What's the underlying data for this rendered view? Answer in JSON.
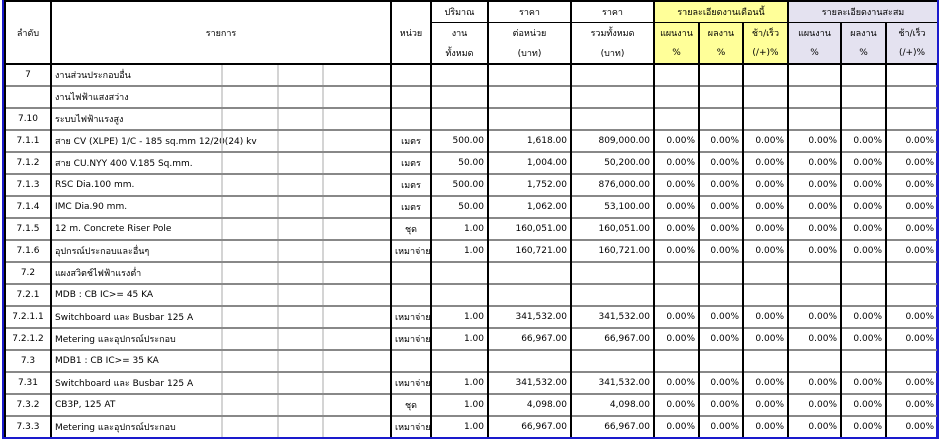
{
  "header": {
    "no": "ลำดับ",
    "item": "รายการ",
    "unit": "หน่วย",
    "qty": [
      "ปริมาณ",
      "งาน",
      "ทั้งหมด"
    ],
    "unit_price": [
      "ราคา",
      "ต่อหน่วย",
      "(บาท)"
    ],
    "total_price": [
      "ราคา",
      "รวมทั้งหมด",
      "(บาท)"
    ],
    "this_month": "รายละเอียดงานเดือนนี้",
    "cumulative": "รายละเอียดงานสะสม",
    "plan": [
      "แผนงาน",
      "%"
    ],
    "result": [
      "ผลงาน",
      "%"
    ],
    "diff": [
      "ช้า/เร็ว",
      "(/+)%"
    ]
  },
  "colors": {
    "this_month_bg": "#ffff99",
    "cumulative_bg": "#e4e2f0",
    "border_accent": "#1a1acc"
  },
  "rows": [
    {
      "no": "7",
      "item": "งานส่วนประกอบอื่น",
      "unit": "",
      "qty": "",
      "price": "",
      "total": "",
      "p": [
        "",
        "",
        "",
        "",
        "",
        ""
      ]
    },
    {
      "no": "",
      "item": "งานไฟฟ้าแสงสว่าง",
      "unit": "",
      "qty": "",
      "price": "",
      "total": "",
      "p": [
        "",
        "",
        "",
        "",
        "",
        ""
      ]
    },
    {
      "no": "7.10",
      "item": "ระบบไฟฟ้าแรงสูง",
      "unit": "",
      "qty": "",
      "price": "",
      "total": "",
      "p": [
        "",
        "",
        "",
        "",
        "",
        ""
      ]
    },
    {
      "no": "7.1.1",
      "item": "สาย CV (XLPE) 1/C - 185 sq.mm 12/20(24) kv",
      "unit": "เมตร",
      "qty": "500.00",
      "price": "1,618.00",
      "total": "809,000.00",
      "p": [
        "0.00%",
        "0.00%",
        "0.00%",
        "0.00%",
        "0.00%",
        "0.00%"
      ]
    },
    {
      "no": "7.1.2",
      "item": "สาย CU.NYY 400 V.185 Sq.mm.",
      "unit": "เมตร",
      "qty": "50.00",
      "price": "1,004.00",
      "total": "50,200.00",
      "p": [
        "0.00%",
        "0.00%",
        "0.00%",
        "0.00%",
        "0.00%",
        "0.00%"
      ]
    },
    {
      "no": "7.1.3",
      "item": " RSC Dia.100 mm.",
      "unit": "เมตร",
      "qty": "500.00",
      "price": "1,752.00",
      "total": "876,000.00",
      "p": [
        "0.00%",
        "0.00%",
        "0.00%",
        "0.00%",
        "0.00%",
        "0.00%"
      ]
    },
    {
      "no": "7.1.4",
      "item": "IMC Dia.90 mm.",
      "unit": "เมตร",
      "qty": "50.00",
      "price": "1,062.00",
      "total": "53,100.00",
      "p": [
        "0.00%",
        "0.00%",
        "0.00%",
        "0.00%",
        "0.00%",
        "0.00%"
      ]
    },
    {
      "no": "7.1.5",
      "item": " 12 m. Concrete Riser Pole",
      "unit": "ชุด",
      "qty": "1.00",
      "price": "160,051.00",
      "total": "160,051.00",
      "p": [
        "0.00%",
        "0.00%",
        "0.00%",
        "0.00%",
        "0.00%",
        "0.00%"
      ]
    },
    {
      "no": "7.1.6",
      "item": "อุปกรณ์ประกอบและอื่นๆ",
      "unit": "เหมาจ่าย",
      "qty": "1.00",
      "price": "160,721.00",
      "total": "160,721.00",
      "p": [
        "0.00%",
        "0.00%",
        "0.00%",
        "0.00%",
        "0.00%",
        "0.00%"
      ]
    },
    {
      "no": "7.2",
      "item": "แผงสวิตช์ไฟฟ้าแรงต่ำ",
      "unit": "",
      "qty": "",
      "price": "",
      "total": "",
      "p": [
        "",
        "",
        "",
        "",
        "",
        ""
      ]
    },
    {
      "no": "7.2.1",
      "item": "MDB : CB IC>= 45 KA",
      "unit": "",
      "qty": "",
      "price": "",
      "total": "",
      "p": [
        "",
        "",
        "",
        "",
        "",
        ""
      ]
    },
    {
      "no": "7.2.1.1",
      "item": "Switchboard และ Busbar 125 A",
      "unit": "เหมาจ่าย",
      "qty": "1.00",
      "price": "341,532.00",
      "total": "341,532.00",
      "p": [
        "0.00%",
        "0.00%",
        "0.00%",
        "0.00%",
        "0.00%",
        "0.00%"
      ]
    },
    {
      "no": "7.2.1.2",
      "item": "Metering และอุปกรณ์ประกอบ",
      "unit": "เหมาจ่าย",
      "qty": "1.00",
      "price": "66,967.00",
      "total": "66,967.00",
      "p": [
        "0.00%",
        "0.00%",
        "0.00%",
        "0.00%",
        "0.00%",
        "0.00%"
      ]
    },
    {
      "no": "7.3",
      "item": "MDB1 : CB IC>= 35 KA",
      "unit": "",
      "qty": "",
      "price": "",
      "total": "",
      "p": [
        "",
        "",
        "",
        "",
        "",
        ""
      ]
    },
    {
      "no": "7.31",
      "item": "Switchboard และ Busbar 125 A",
      "unit": "เหมาจ่าย",
      "qty": "1.00",
      "price": "341,532.00",
      "total": "341,532.00",
      "p": [
        "0.00%",
        "0.00%",
        "0.00%",
        "0.00%",
        "0.00%",
        "0.00%"
      ]
    },
    {
      "no": "7.3.2",
      "item": "CB3P, 125 AT",
      "unit": "ชุด",
      "qty": "1.00",
      "price": "4,098.00",
      "total": "4,098.00",
      "p": [
        "0.00%",
        "0.00%",
        "0.00%",
        "0.00%",
        "0.00%",
        "0.00%"
      ]
    },
    {
      "no": "7.3.3",
      "item": "Metering และอุปกรณ์ประกอบ",
      "unit": "เหมาจ่าย",
      "qty": "1.00",
      "price": "66,967.00",
      "total": "66,967.00",
      "p": [
        "0.00%",
        "0.00%",
        "0.00%",
        "0.00%",
        "0.00%",
        "0.00%"
      ]
    }
  ]
}
